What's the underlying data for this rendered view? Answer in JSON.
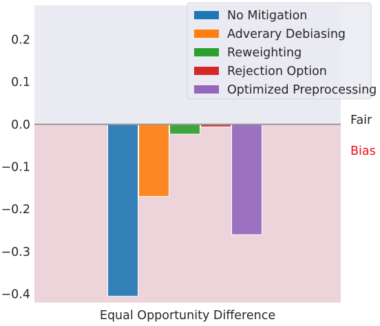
{
  "chart_data": {
    "type": "bar",
    "categories": [
      "Equal Opportunity Difference"
    ],
    "series": [
      {
        "name": "No Mitigation",
        "values": [
          -0.405
        ],
        "color": "#1f77b4"
      },
      {
        "name": "Adverary Debiasing",
        "values": [
          -0.17
        ],
        "color": "#ff7f0e"
      },
      {
        "name": "Reweighting",
        "values": [
          -0.023
        ],
        "color": "#2ca02c"
      },
      {
        "name": "Rejection Option",
        "values": [
          -0.006
        ],
        "color": "#d62728"
      },
      {
        "name": "Optimized Preprocessing",
        "values": [
          -0.26
        ],
        "color": "#9467bd"
      }
    ],
    "ylim": [
      -0.42,
      0.28
    ],
    "yticks": [
      0.2,
      0.1,
      0.0,
      -0.1,
      -0.2,
      -0.3,
      -0.4
    ],
    "ytick_labels": [
      "0.2",
      "0.1",
      "0.0",
      "−0.1",
      "−0.2",
      "−0.3",
      "−0.4"
    ],
    "baseline": 0.0,
    "regions": {
      "fair": {
        "label": "Fair",
        "color": "#eaeaf2",
        "text_color": "#262626"
      },
      "bias": {
        "label": "Bias",
        "color": "#ecd4da",
        "text_color": "#e8101c"
      }
    },
    "baseline_color": "#999999",
    "legend_position": "top-right",
    "grid": false
  }
}
